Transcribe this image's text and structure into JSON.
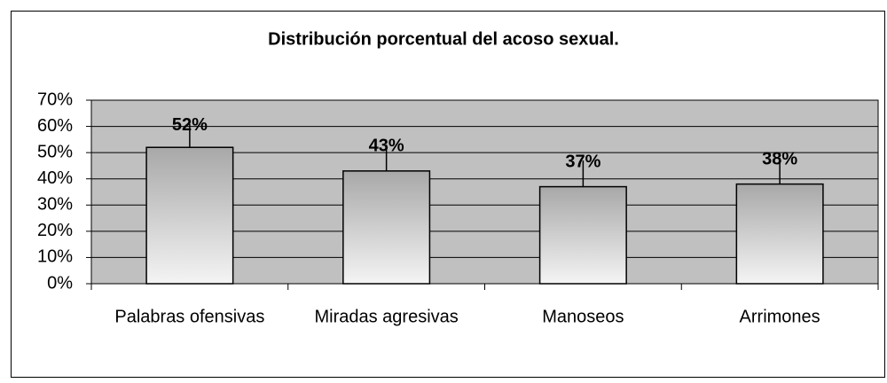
{
  "chart_data": {
    "type": "bar",
    "title": "Distribución porcentual del acoso sexual.",
    "categories": [
      "Palabras ofensivas",
      "Miradas agresivas",
      "Manoseos",
      "Arrimones"
    ],
    "values": [
      52,
      43,
      37,
      38
    ],
    "value_labels": [
      "52%",
      "43%",
      "37%",
      "38%"
    ],
    "errors": [
      9,
      10,
      10,
      10
    ],
    "ylim": [
      0,
      70
    ],
    "yticks": [
      {
        "value": 0,
        "label": "0%"
      },
      {
        "value": 10,
        "label": "10%"
      },
      {
        "value": 20,
        "label": "20%"
      },
      {
        "value": 30,
        "label": "30%"
      },
      {
        "value": 40,
        "label": "40%"
      },
      {
        "value": 50,
        "label": "50%"
      },
      {
        "value": 60,
        "label": "60%"
      },
      {
        "value": 70,
        "label": "70%"
      }
    ],
    "grid": true,
    "plot_color": "#c0c0c0"
  }
}
